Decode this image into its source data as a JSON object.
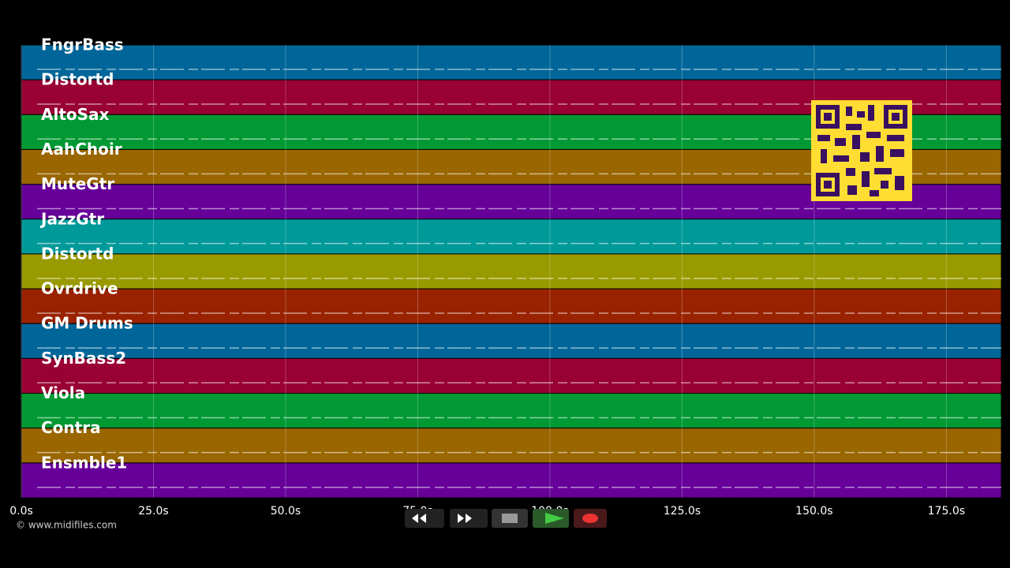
{
  "tracks": [
    {
      "name": "FngrBass",
      "color": "#006699"
    },
    {
      "name": "Distortd",
      "color": "#990033"
    },
    {
      "name": "AltoSax",
      "color": "#009933"
    },
    {
      "name": "AahChoir",
      "color": "#996600"
    },
    {
      "name": "MuteGtr",
      "color": "#660099"
    },
    {
      "name": "JazzGtr",
      "color": "#009999"
    },
    {
      "name": "Distortd",
      "color": "#999900"
    },
    {
      "name": "Ovrdrive",
      "color": "#992200"
    },
    {
      "name": "GM Drums",
      "color": "#006699"
    },
    {
      "name": "SynBass2",
      "color": "#990033"
    },
    {
      "name": "Viola",
      "color": "#009933"
    },
    {
      "name": "Contra",
      "color": "#996600"
    },
    {
      "name": "Ensmble1",
      "color": "#660099"
    }
  ],
  "time_axis": {
    "xlim": [
      0,
      185.4
    ],
    "ticks": [
      {
        "value": 0,
        "label": "0.0s"
      },
      {
        "value": 25,
        "label": "25.0s"
      },
      {
        "value": 50,
        "label": "50.0s"
      },
      {
        "value": 75,
        "label": "75.0s"
      },
      {
        "value": 100,
        "label": "100.0s"
      },
      {
        "value": 125,
        "label": "125.0s"
      },
      {
        "value": 150,
        "label": "150.0s"
      },
      {
        "value": 175,
        "label": "175.0s"
      }
    ]
  },
  "copyright": "© www.midifiles.com"
}
